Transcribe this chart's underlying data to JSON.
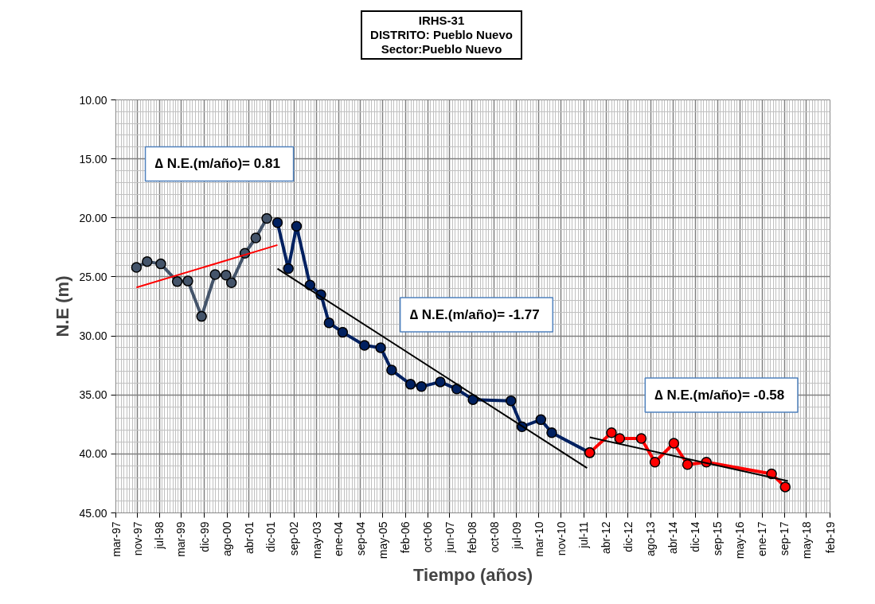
{
  "chart_data": {
    "type": "line",
    "title": "IRHS-31\nDISTRITO: Pueblo Nuevo\nSector:Pueblo Nuevo",
    "xlabel": "Tiempo (años)",
    "ylabel": "N.E (m)",
    "xlim": [
      "1997-03-15",
      "2019-02-15"
    ],
    "xticks": [
      {
        "value": "1997-03-15",
        "label": "mar-97"
      },
      {
        "value": "1997-11-15",
        "label": "nov-97"
      },
      {
        "value": "1998-07-15",
        "label": "jul-98"
      },
      {
        "value": "1999-03-15",
        "label": "mar-99"
      },
      {
        "value": "1999-12-01",
        "label": "dic-99"
      },
      {
        "value": "2000-08-15",
        "label": "ago-00"
      },
      {
        "value": "2001-04-15",
        "label": "abr-01"
      },
      {
        "value": "2001-12-15",
        "label": "dic-01"
      },
      {
        "value": "2002-09-01",
        "label": "sep-02"
      },
      {
        "value": "2003-05-15",
        "label": "may-03"
      },
      {
        "value": "2004-01-15",
        "label": "ene-04"
      },
      {
        "value": "2004-09-15",
        "label": "sep-04"
      },
      {
        "value": "2005-05-25",
        "label": "may-05"
      },
      {
        "value": "2006-02-01",
        "label": "feb-06"
      },
      {
        "value": "2006-10-10",
        "label": "oct-06"
      },
      {
        "value": "2007-06-15",
        "label": "jun-07"
      },
      {
        "value": "2008-02-20",
        "label": "feb-08"
      },
      {
        "value": "2008-10-25",
        "label": "oct-08"
      },
      {
        "value": "2009-07-01",
        "label": "jul-09"
      },
      {
        "value": "2010-03-10",
        "label": "mar-10"
      },
      {
        "value": "2010-11-15",
        "label": "nov-10"
      },
      {
        "value": "2011-07-25",
        "label": "jul-11"
      },
      {
        "value": "2012-04-01",
        "label": "abr-12"
      },
      {
        "value": "2012-12-05",
        "label": "dic-12"
      },
      {
        "value": "2013-08-15",
        "label": "ago-13"
      },
      {
        "value": "2014-04-20",
        "label": "abr-14"
      },
      {
        "value": "2014-12-25",
        "label": "dic-14"
      },
      {
        "value": "2015-09-01",
        "label": "sep-15"
      },
      {
        "value": "2016-05-10",
        "label": "may-16"
      },
      {
        "value": "2017-01-15",
        "label": "ene-17"
      },
      {
        "value": "2017-09-20",
        "label": "sep-17"
      },
      {
        "value": "2018-05-25",
        "label": "may-18"
      },
      {
        "value": "2019-02-15",
        "label": "feb-19"
      }
    ],
    "ylim": [
      45,
      10
    ],
    "yticks": [
      {
        "value": 10,
        "label": "10.00"
      },
      {
        "value": 15,
        "label": "15.00"
      },
      {
        "value": 20,
        "label": "20.00"
      },
      {
        "value": 25,
        "label": "25.00"
      },
      {
        "value": 30,
        "label": "30.00"
      },
      {
        "value": 35,
        "label": "35.00"
      },
      {
        "value": 40,
        "label": "40.00"
      },
      {
        "value": 45,
        "label": "45.00"
      }
    ],
    "grid": true,
    "series": [
      {
        "color": "#44546a",
        "marker": "circle",
        "x": [
          "1997-11",
          "1998-03",
          "1998-08",
          "1999-02",
          "1999-06",
          "1999-11",
          "2000-04",
          "2000-08",
          "2000-10",
          "2001-03",
          "2001-07",
          "2001-11"
        ],
        "values": [
          24.2,
          23.7,
          23.9,
          25.4,
          25.35,
          28.35,
          24.8,
          24.85,
          25.5,
          23.0,
          21.7,
          20.05
        ]
      },
      {
        "color": "#002060",
        "marker": "circle",
        "x": [
          "2002-03",
          "2002-07",
          "2002-10",
          "2003-03",
          "2003-07",
          "2003-10",
          "2004-03",
          "2004-11",
          "2005-05",
          "2005-09",
          "2006-04",
          "2006-08",
          "2007-03",
          "2007-09",
          "2008-03",
          "2009-05",
          "2009-09",
          "2010-04",
          "2010-08",
          "2011-10"
        ],
        "values": [
          20.4,
          24.3,
          20.7,
          25.7,
          26.5,
          28.9,
          29.7,
          30.8,
          31.0,
          32.9,
          34.1,
          34.3,
          33.9,
          34.5,
          35.4,
          35.5,
          37.7,
          37.1,
          38.2,
          39.9
        ]
      },
      {
        "color": "#ff0000",
        "marker": "circle",
        "x": [
          "2011-10",
          "2012-06",
          "2012-09",
          "2013-05",
          "2013-10",
          "2014-05",
          "2014-10",
          "2015-05",
          "2017-05",
          "2017-10"
        ],
        "values": [
          39.9,
          38.2,
          38.7,
          38.7,
          40.7,
          39.1,
          40.9,
          40.7,
          41.7,
          42.8
        ]
      },
      {
        "color": "#ff0000",
        "marker": "none",
        "x": [
          "1997-11",
          "2002-03"
        ],
        "values": [
          25.9,
          22.3
        ]
      },
      {
        "color": "#000000",
        "marker": "none",
        "x": [
          "2002-03",
          "2011-09"
        ],
        "values": [
          24.3,
          41.2
        ]
      },
      {
        "color": "#000000",
        "marker": "none",
        "x": [
          "2011-10",
          "2017-11"
        ],
        "values": [
          38.6,
          42.3
        ]
      }
    ],
    "annotations": [
      "∆ N.E.(m/año)=  0.81",
      "∆ N.E.(m/año)=  -1.77",
      "∆ N.E.(m/año)=  -0.58"
    ]
  }
}
